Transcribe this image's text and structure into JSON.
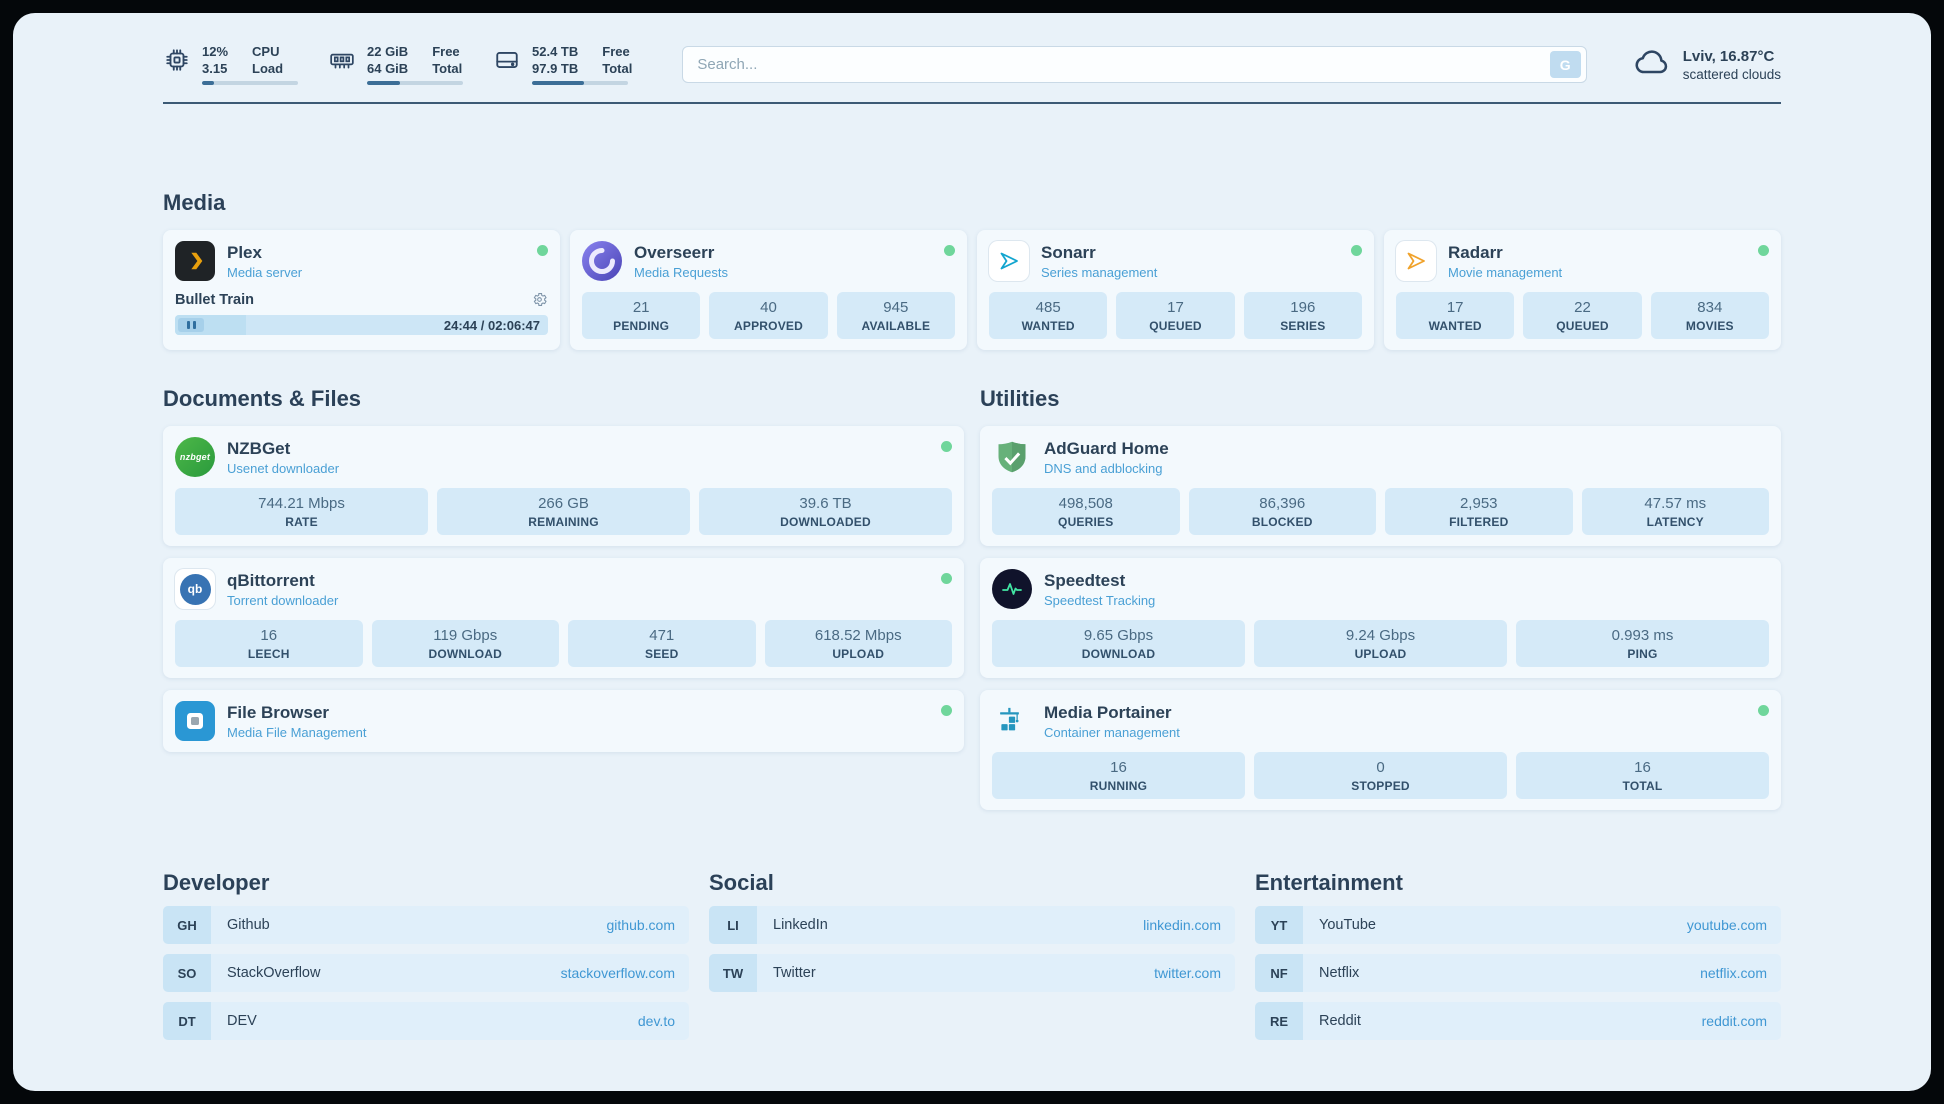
{
  "theme": {
    "background": "#e9f2f9",
    "card_background": "#f3f9fd",
    "tile_background": "#d5eaf8",
    "text_primary": "#2c4257",
    "subtitle_blue": "#4aa0d5",
    "link_blue": "#3f97d3",
    "status_online_green": "#6fd69b",
    "progress_fill": "#3c6e97",
    "plex_brand": "#e8a00d",
    "adguard_green": "#67b17a",
    "speedtest_green": "#42e6a4"
  },
  "topbar": {
    "system_stats": [
      {
        "icon": "cpu-icon",
        "value_top": "12%",
        "value_bottom": "3.15",
        "label_top": "CPU",
        "label_bottom": "Load",
        "progress_percent": 12
      },
      {
        "icon": "memory-icon",
        "value_top": "22 GiB",
        "value_bottom": "64 GiB",
        "label_top": "Free",
        "label_bottom": "Total",
        "progress_percent": 34
      },
      {
        "icon": "disk-icon",
        "value_top": "52.4 TB",
        "value_bottom": "97.9 TB",
        "label_top": "Free",
        "label_bottom": "Total",
        "progress_percent": 54
      }
    ],
    "search": {
      "placeholder": "Search...",
      "button_label": "G"
    },
    "weather": {
      "icon": "cloud-icon",
      "location": "Lviv, 16.87°C",
      "condition": "scattered clouds"
    }
  },
  "media": {
    "title": "Media",
    "plex": {
      "name": "Plex",
      "subtitle": "Media server",
      "now_playing": "Bullet Train",
      "time": "24:44 / 02:06:47",
      "progress_percent": 19
    },
    "overseerr": {
      "name": "Overseerr",
      "subtitle": "Media Requests",
      "stats": [
        {
          "value": "21",
          "label": "PENDING"
        },
        {
          "value": "40",
          "label": "APPROVED"
        },
        {
          "value": "945",
          "label": "AVAILABLE"
        }
      ]
    },
    "sonarr": {
      "name": "Sonarr",
      "subtitle": "Series management",
      "stats": [
        {
          "value": "485",
          "label": "WANTED"
        },
        {
          "value": "17",
          "label": "QUEUED"
        },
        {
          "value": "196",
          "label": "SERIES"
        }
      ]
    },
    "radarr": {
      "name": "Radarr",
      "subtitle": "Movie management",
      "stats": [
        {
          "value": "17",
          "label": "WANTED"
        },
        {
          "value": "22",
          "label": "QUEUED"
        },
        {
          "value": "834",
          "label": "MOVIES"
        }
      ]
    }
  },
  "documents": {
    "title": "Documents & Files",
    "nzbget": {
      "name": "NZBGet",
      "subtitle": "Usenet downloader",
      "icon_text": "nzbget",
      "stats": [
        {
          "value": "744.21 Mbps",
          "label": "RATE"
        },
        {
          "value": "266 GB",
          "label": "REMAINING"
        },
        {
          "value": "39.6 TB",
          "label": "DOWNLOADED"
        }
      ]
    },
    "qbittorrent": {
      "name": "qBittorrent",
      "subtitle": "Torrent downloader",
      "icon_text": "qb",
      "stats": [
        {
          "value": "16",
          "label": "LEECH"
        },
        {
          "value": "119 Gbps",
          "label": "DOWNLOAD"
        },
        {
          "value": "471",
          "label": "SEED"
        },
        {
          "value": "618.52 Mbps",
          "label": "UPLOAD"
        }
      ]
    },
    "filebrowser": {
      "name": "File Browser",
      "subtitle": "Media File Management"
    }
  },
  "utilities": {
    "title": "Utilities",
    "adguard": {
      "name": "AdGuard Home",
      "subtitle": "DNS and adblocking",
      "stats": [
        {
          "value": "498,508",
          "label": "QUERIES"
        },
        {
          "value": "86,396",
          "label": "BLOCKED"
        },
        {
          "value": "2,953",
          "label": "FILTERED"
        },
        {
          "value": "47.57 ms",
          "label": "LATENCY"
        }
      ]
    },
    "speedtest": {
      "name": "Speedtest",
      "subtitle": "Speedtest Tracking",
      "stats": [
        {
          "value": "9.65 Gbps",
          "label": "DOWNLOAD"
        },
        {
          "value": "9.24 Gbps",
          "label": "UPLOAD"
        },
        {
          "value": "0.993 ms",
          "label": "PING"
        }
      ]
    },
    "portainer": {
      "name": "Media Portainer",
      "subtitle": "Container management",
      "stats": [
        {
          "value": "16",
          "label": "RUNNING"
        },
        {
          "value": "0",
          "label": "STOPPED"
        },
        {
          "value": "16",
          "label": "TOTAL"
        }
      ]
    }
  },
  "bookmarks": [
    {
      "title": "Developer",
      "items": [
        {
          "badge": "GH",
          "name": "Github",
          "url": "github.com"
        },
        {
          "badge": "SO",
          "name": "StackOverflow",
          "url": "stackoverflow.com"
        },
        {
          "badge": "DT",
          "name": "DEV",
          "url": "dev.to"
        }
      ]
    },
    {
      "title": "Social",
      "items": [
        {
          "badge": "LI",
          "name": "LinkedIn",
          "url": "linkedin.com"
        },
        {
          "badge": "TW",
          "name": "Twitter",
          "url": "twitter.com"
        }
      ]
    },
    {
      "title": "Entertainment",
      "items": [
        {
          "badge": "YT",
          "name": "YouTube",
          "url": "youtube.com"
        },
        {
          "badge": "NF",
          "name": "Netflix",
          "url": "netflix.com"
        },
        {
          "badge": "RE",
          "name": "Reddit",
          "url": "reddit.com"
        }
      ]
    }
  ]
}
